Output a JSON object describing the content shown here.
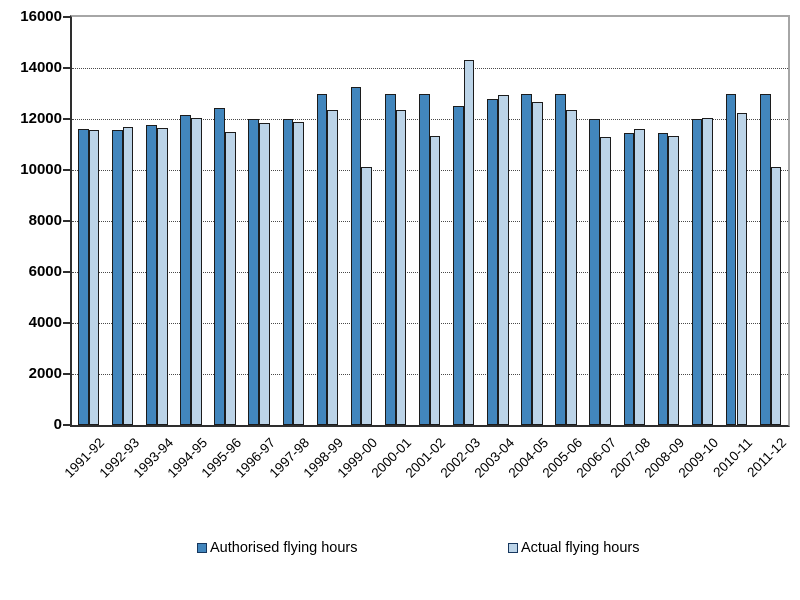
{
  "chart_data": {
    "type": "bar",
    "title": "",
    "xlabel": "",
    "ylabel": "",
    "categories": [
      "1991-92",
      "1992-93",
      "1993-94",
      "1994-95",
      "1995-96",
      "1996-97",
      "1997-98",
      "1998-99",
      "1999-00",
      "2000-01",
      "2001-02",
      "2002-03",
      "2003-04",
      "2004-05",
      "2005-06",
      "2006-07",
      "2007-08",
      "2008-09",
      "2009-10",
      "2010-11",
      "2011-12"
    ],
    "series": [
      {
        "name": "Authorised flying hours",
        "color": "#4286BD",
        "values": [
          11600,
          11550,
          11750,
          12150,
          12450,
          12000,
          12000,
          13000,
          13250,
          13000,
          13000,
          12500,
          12800,
          13000,
          13000,
          12000,
          11450,
          11450,
          12000,
          13000,
          13000
        ]
      },
      {
        "name": "Actual flying hours",
        "color": "#BCD4E8",
        "values": [
          11550,
          11700,
          11650,
          12050,
          11500,
          11850,
          11900,
          12350,
          10100,
          12350,
          11350,
          14300,
          12950,
          12650,
          12350,
          11300,
          11600,
          11350,
          12050,
          12250,
          10100
        ]
      }
    ],
    "ylim": [
      0,
      16000
    ],
    "yticks": [
      0,
      2000,
      4000,
      6000,
      8000,
      10000,
      12000,
      14000,
      16000
    ],
    "grid": "horizontal-dotted",
    "legend_position": "bottom",
    "colors": {
      "bar_border": "#1C1C1C",
      "gridline": "#4A4A4A",
      "axis": "#2E2E2E",
      "plot_border": "#A6A6A6",
      "legend_swatch_border": "#17375E",
      "text": "#000000",
      "background": "#FFFFFF"
    }
  }
}
